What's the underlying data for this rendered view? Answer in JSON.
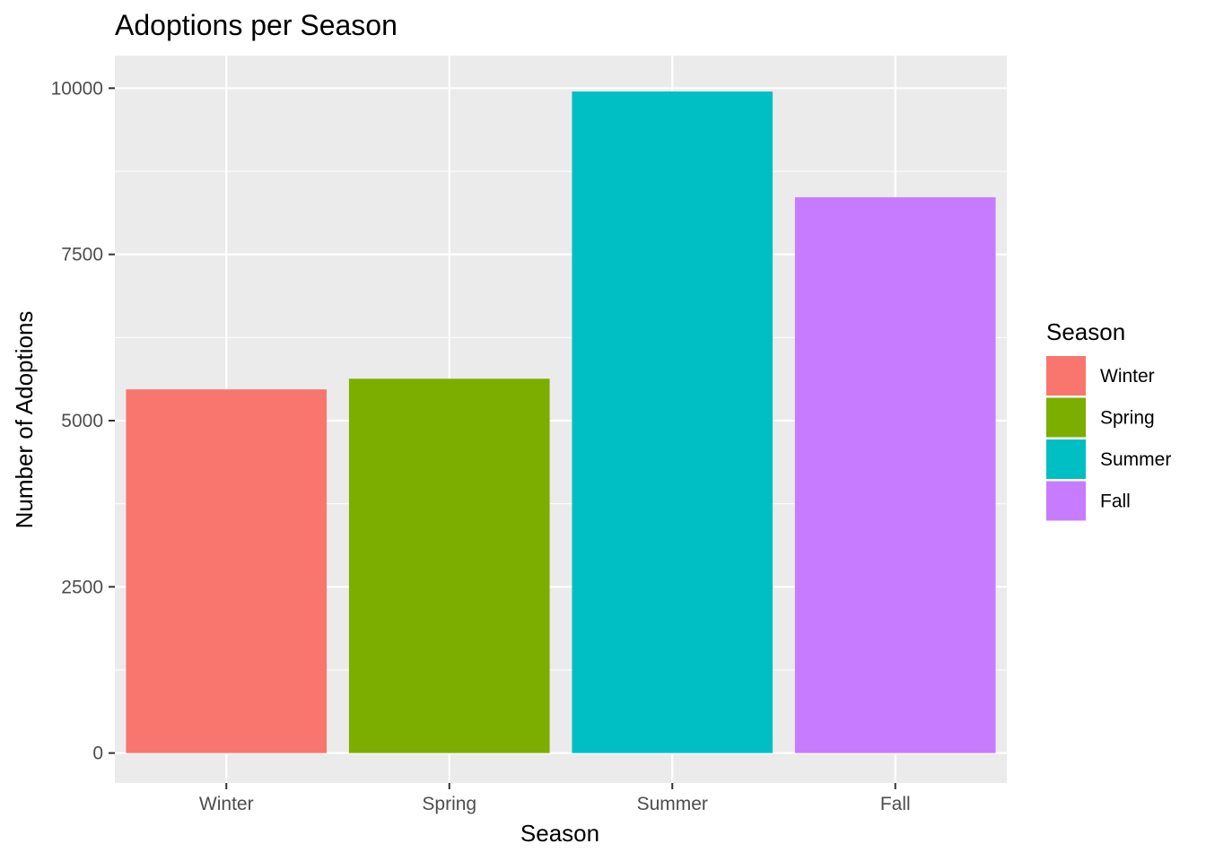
{
  "chart_data": {
    "type": "bar",
    "title": "Adoptions per Season",
    "xlabel": "Season",
    "ylabel": "Number of Adoptions",
    "categories": [
      "Winter",
      "Spring",
      "Summer",
      "Fall"
    ],
    "values": [
      5470,
      5630,
      9950,
      8360
    ],
    "colors": [
      "#F8766D",
      "#7CAE00",
      "#00BFC4",
      "#C77CFF"
    ],
    "ylim": [
      -450,
      10490
    ],
    "yticks": [
      0,
      2500,
      5000,
      7500,
      10000
    ],
    "ytick_labels": [
      "0",
      "2500",
      "5000",
      "7500",
      "10000"
    ],
    "grid": true,
    "legend": {
      "title": "Season",
      "position": "right",
      "items": [
        "Winter",
        "Spring",
        "Summer",
        "Fall"
      ]
    },
    "panel_background": "#EBEBEB",
    "grid_color": "#FFFFFF"
  }
}
